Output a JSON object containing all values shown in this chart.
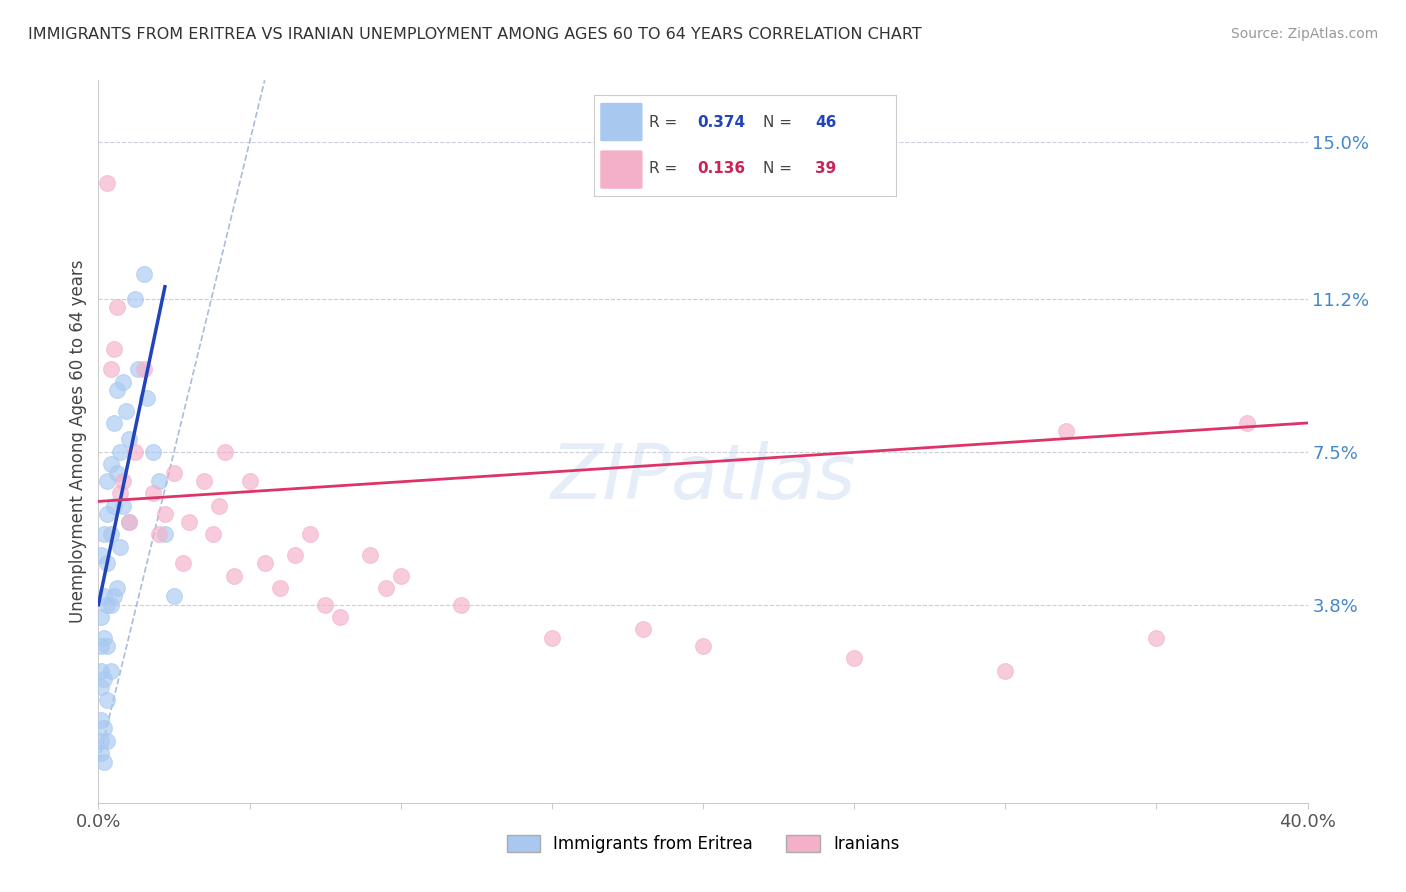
{
  "title": "IMMIGRANTS FROM ERITREA VS IRANIAN UNEMPLOYMENT AMONG AGES 60 TO 64 YEARS CORRELATION CHART",
  "source": "Source: ZipAtlas.com",
  "ylabel": "Unemployment Among Ages 60 to 64 years",
  "xlim": [
    0.0,
    0.4
  ],
  "ylim": [
    -0.01,
    0.165
  ],
  "xticks": [
    0.0,
    0.05,
    0.1,
    0.15,
    0.2,
    0.25,
    0.3,
    0.35,
    0.4
  ],
  "xtick_labels": [
    "0.0%",
    "",
    "",
    "",
    "",
    "",
    "",
    "",
    "40.0%"
  ],
  "ytick_labels_right": [
    "3.8%",
    "7.5%",
    "11.2%",
    "15.0%"
  ],
  "ytick_vals_right": [
    0.038,
    0.075,
    0.112,
    0.15
  ],
  "legend1_label": "Immigrants from Eritrea",
  "legend2_label": "Iranians",
  "R1": 0.374,
  "N1": 46,
  "R2": 0.136,
  "N2": 39,
  "blue_color": "#a8c8f0",
  "pink_color": "#f4b0c8",
  "blue_line_color": "#2244bb",
  "pink_line_color": "#dd3366",
  "diag_color": "#aabbdd",
  "watermark": "ZIPatlas",
  "blue_points_x": [
    0.001,
    0.001,
    0.001,
    0.001,
    0.001,
    0.001,
    0.001,
    0.001,
    0.002,
    0.002,
    0.002,
    0.002,
    0.002,
    0.003,
    0.003,
    0.003,
    0.003,
    0.003,
    0.003,
    0.003,
    0.004,
    0.004,
    0.004,
    0.004,
    0.005,
    0.005,
    0.005,
    0.006,
    0.006,
    0.006,
    0.007,
    0.007,
    0.008,
    0.008,
    0.009,
    0.01,
    0.01,
    0.012,
    0.013,
    0.015,
    0.016,
    0.018,
    0.02,
    0.022,
    0.025,
    0.002
  ],
  "blue_points_y": [
    0.05,
    0.035,
    0.028,
    0.022,
    0.018,
    0.01,
    0.005,
    0.002,
    0.055,
    0.04,
    0.03,
    0.02,
    0.008,
    0.068,
    0.06,
    0.048,
    0.038,
    0.028,
    0.015,
    0.005,
    0.072,
    0.055,
    0.038,
    0.022,
    0.082,
    0.062,
    0.04,
    0.09,
    0.07,
    0.042,
    0.075,
    0.052,
    0.092,
    0.062,
    0.085,
    0.078,
    0.058,
    0.112,
    0.095,
    0.118,
    0.088,
    0.075,
    0.068,
    0.055,
    0.04,
    0.0
  ],
  "pink_points_x": [
    0.003,
    0.004,
    0.005,
    0.006,
    0.007,
    0.008,
    0.01,
    0.012,
    0.015,
    0.018,
    0.02,
    0.022,
    0.025,
    0.028,
    0.03,
    0.035,
    0.038,
    0.04,
    0.042,
    0.045,
    0.05,
    0.055,
    0.06,
    0.065,
    0.07,
    0.075,
    0.08,
    0.09,
    0.095,
    0.1,
    0.12,
    0.15,
    0.18,
    0.2,
    0.25,
    0.3,
    0.32,
    0.35,
    0.38
  ],
  "pink_points_y": [
    0.14,
    0.095,
    0.1,
    0.11,
    0.065,
    0.068,
    0.058,
    0.075,
    0.095,
    0.065,
    0.055,
    0.06,
    0.07,
    0.048,
    0.058,
    0.068,
    0.055,
    0.062,
    0.075,
    0.045,
    0.068,
    0.048,
    0.042,
    0.05,
    0.055,
    0.038,
    0.035,
    0.05,
    0.042,
    0.045,
    0.038,
    0.03,
    0.032,
    0.028,
    0.025,
    0.022,
    0.08,
    0.03,
    0.082
  ]
}
